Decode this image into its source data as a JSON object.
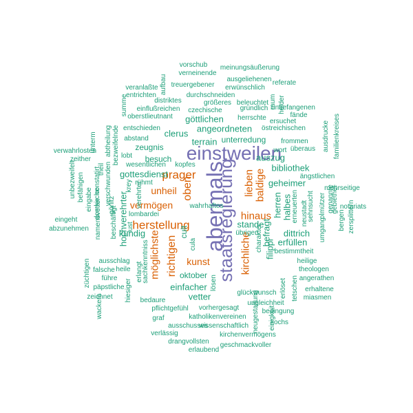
{
  "colors": {
    "big": "#7570b3",
    "mid": "#d95f02",
    "small": "#1b9e77"
  },
  "words": [
    {
      "text": "abermals",
      "tier": "big"
    },
    {
      "text": "einstweilen",
      "tier": "big"
    },
    {
      "text": "staatsregierung",
      "tier": "big"
    },
    {
      "text": "prager",
      "tier": "mid"
    },
    {
      "text": "herstellung",
      "tier": "mid"
    },
    {
      "text": "vermögen",
      "tier": "mid"
    },
    {
      "text": "unheil",
      "tier": "mid"
    },
    {
      "text": "oben",
      "tier": "mid"
    },
    {
      "text": "richtigen",
      "tier": "mid"
    },
    {
      "text": "möglichste",
      "tier": "mid"
    },
    {
      "text": "kunst",
      "tier": "mid"
    },
    {
      "text": "lieben",
      "tier": "mid"
    },
    {
      "text": "baldige",
      "tier": "mid"
    },
    {
      "text": "hinaus",
      "tier": "mid"
    },
    {
      "text": "kirchliche",
      "tier": "mid"
    },
    {
      "text": "vorschub",
      "tier": "small"
    },
    {
      "text": "verneinende",
      "tier": "small"
    },
    {
      "text": "meinungsäußerung",
      "tier": "small"
    },
    {
      "text": "aufbau",
      "tier": "small"
    },
    {
      "text": "ausgeliehenen",
      "tier": "small"
    },
    {
      "text": "treuergebener",
      "tier": "small"
    },
    {
      "text": "referate",
      "tier": "small"
    },
    {
      "text": "veranlaßte",
      "tier": "small"
    },
    {
      "text": "erwünschlich",
      "tier": "small"
    },
    {
      "text": "entrichten",
      "tier": "small"
    },
    {
      "text": "durchschneiden",
      "tier": "small"
    },
    {
      "text": "distriktes",
      "tier": "small"
    },
    {
      "text": "größeres",
      "tier": "small"
    },
    {
      "text": "beleuchtet",
      "tier": "small"
    },
    {
      "text": "raum",
      "tier": "small"
    },
    {
      "text": "heider",
      "tier": "small"
    },
    {
      "text": "summe",
      "tier": "small"
    },
    {
      "text": "einflußreichen",
      "tier": "small"
    },
    {
      "text": "czechische",
      "tier": "small"
    },
    {
      "text": "gründlich",
      "tier": "small"
    },
    {
      "text": "unbefangenen",
      "tier": "small"
    },
    {
      "text": "oberstlieutnant",
      "tier": "small"
    },
    {
      "text": "herrschte",
      "tier": "small"
    },
    {
      "text": "fände",
      "tier": "small"
    },
    {
      "text": "ersuchet",
      "tier": "small"
    },
    {
      "text": "göttlichen",
      "tier": "small"
    },
    {
      "text": "angeordneten",
      "tier": "small"
    },
    {
      "text": "östreichischen",
      "tier": "small"
    },
    {
      "text": "entschieden",
      "tier": "small"
    },
    {
      "text": "unterm",
      "tier": "small"
    },
    {
      "text": "abtheilung",
      "tier": "small"
    },
    {
      "text": "clerus",
      "tier": "small"
    },
    {
      "text": "abstand",
      "tier": "small"
    },
    {
      "text": "terrain",
      "tier": "small"
    },
    {
      "text": "unterredung",
      "tier": "small"
    },
    {
      "text": "frommen",
      "tier": "small"
    },
    {
      "text": "ausdrucke",
      "tier": "small"
    },
    {
      "text": "familienkreises",
      "tier": "small"
    },
    {
      "text": "zeugnis",
      "tier": "small"
    },
    {
      "text": "bezweifelnde",
      "tier": "small"
    },
    {
      "text": "überaus",
      "tier": "small"
    },
    {
      "text": "wort",
      "tier": "small"
    },
    {
      "text": "verwahrlosten",
      "tier": "small"
    },
    {
      "text": "auszug",
      "tier": "small"
    },
    {
      "text": "zeither",
      "tier": "small"
    },
    {
      "text": "lobt",
      "tier": "small"
    },
    {
      "text": "besuch",
      "tier": "small"
    },
    {
      "text": "wesentlichen",
      "tier": "small"
    },
    {
      "text": "kopfes",
      "tier": "small"
    },
    {
      "text": "theil",
      "tier": "small"
    },
    {
      "text": "bibliothek",
      "tier": "small"
    },
    {
      "text": "gottesdienst",
      "tier": "small"
    },
    {
      "text": "ängstlichen",
      "tier": "small"
    },
    {
      "text": "befähigen",
      "tier": "small"
    },
    {
      "text": "unbezweifelt",
      "tier": "small"
    },
    {
      "text": "constatirt",
      "tier": "small"
    },
    {
      "text": "verschwunden",
      "tier": "small"
    },
    {
      "text": "rühmt",
      "tier": "small"
    },
    {
      "text": "krey",
      "tier": "small"
    },
    {
      "text": "geheimer",
      "tier": "small"
    },
    {
      "text": "mehrseitige",
      "tier": "small"
    },
    {
      "text": "eingabe",
      "tier": "small"
    },
    {
      "text": "domkirche",
      "tier": "small"
    },
    {
      "text": "görlitz",
      "tier": "small"
    },
    {
      "text": "verehrter",
      "tier": "small"
    },
    {
      "text": "herren",
      "tier": "small"
    },
    {
      "text": "erneuerten",
      "tier": "small"
    },
    {
      "text": "sehnsucht",
      "tier": "small"
    },
    {
      "text": "olmützer",
      "tier": "small"
    },
    {
      "text": "genannte",
      "tier": "small"
    },
    {
      "text": "gebiethet",
      "tier": "small"
    },
    {
      "text": "notariats",
      "tier": "small"
    },
    {
      "text": "lombardei",
      "tier": "small"
    },
    {
      "text": "halbes",
      "tier": "small"
    },
    {
      "text": "eingeht",
      "tier": "small"
    },
    {
      "text": "namensvetter",
      "tier": "small"
    },
    {
      "text": "beschäftigt",
      "tier": "small"
    },
    {
      "text": "lust",
      "tier": "small"
    },
    {
      "text": "hochverehrter",
      "tier": "small"
    },
    {
      "text": "stande",
      "tier": "small"
    },
    {
      "text": "neustadt",
      "tier": "small"
    },
    {
      "text": "bergen",
      "tier": "small"
    },
    {
      "text": "zersplittern",
      "tier": "small"
    },
    {
      "text": "abzunehmen",
      "tier": "small"
    },
    {
      "text": "kundig",
      "tier": "small"
    },
    {
      "text": "cult",
      "tier": "small"
    },
    {
      "text": "cula",
      "tier": "small"
    },
    {
      "text": "übrigen",
      "tier": "small"
    },
    {
      "text": "befragt",
      "tier": "small"
    },
    {
      "text": "dittrich",
      "tier": "small"
    },
    {
      "text": "umgang",
      "tier": "small"
    },
    {
      "text": "filippi",
      "tier": "small"
    },
    {
      "text": "erfüllen",
      "tier": "small"
    },
    {
      "text": "charakter",
      "tier": "small"
    },
    {
      "text": "bestimmtheit",
      "tier": "small"
    },
    {
      "text": "züchtigen",
      "tier": "small"
    },
    {
      "text": "ausschlag",
      "tier": "small"
    },
    {
      "text": "falsche",
      "tier": "small"
    },
    {
      "text": "heile",
      "tier": "small"
    },
    {
      "text": "führe",
      "tier": "small"
    },
    {
      "text": "erlangt",
      "tier": "small"
    },
    {
      "text": "sachkenntniss",
      "tier": "small"
    },
    {
      "text": "oktober",
      "tier": "small"
    },
    {
      "text": "heilige",
      "tier": "small"
    },
    {
      "text": "theologen",
      "tier": "small"
    },
    {
      "text": "päpstliche",
      "tier": "small"
    },
    {
      "text": "einfacher",
      "tier": "small"
    },
    {
      "text": "lösen",
      "tier": "small"
    },
    {
      "text": "erlöset",
      "tier": "small"
    },
    {
      "text": "angerathen",
      "tier": "small"
    },
    {
      "text": "zeichnet",
      "tier": "small"
    },
    {
      "text": "hiesiger",
      "tier": "small"
    },
    {
      "text": "bedaure",
      "tier": "small"
    },
    {
      "text": "vetter",
      "tier": "small"
    },
    {
      "text": "glückwunsch",
      "tier": "small"
    },
    {
      "text": "tetschen",
      "tier": "small"
    },
    {
      "text": "erhaltene",
      "tier": "small"
    },
    {
      "text": "miasmen",
      "tier": "small"
    },
    {
      "text": "ungleichheit",
      "tier": "small"
    },
    {
      "text": "wackern",
      "tier": "small"
    },
    {
      "text": "pflichtgefühl",
      "tier": "small"
    },
    {
      "text": "vorhergesagt",
      "tier": "small"
    },
    {
      "text": "bedingung",
      "tier": "small"
    },
    {
      "text": "neugestaltung",
      "tier": "small"
    },
    {
      "text": "einigkeit",
      "tier": "small"
    },
    {
      "text": "graf",
      "tier": "small"
    },
    {
      "text": "katholikenvereinen",
      "tier": "small"
    },
    {
      "text": "kochs",
      "tier": "small"
    },
    {
      "text": "ausschusses",
      "tier": "small"
    },
    {
      "text": "wissenschaftlich",
      "tier": "small"
    },
    {
      "text": "verlässig",
      "tier": "small"
    },
    {
      "text": "kirchenvermögens",
      "tier": "small"
    },
    {
      "text": "drangvollsten",
      "tier": "small"
    },
    {
      "text": "geschmackvoller",
      "tier": "small"
    },
    {
      "text": "erlaubend",
      "tier": "small"
    },
    {
      "text": "wahrhaftes",
      "tier": "small"
    }
  ]
}
